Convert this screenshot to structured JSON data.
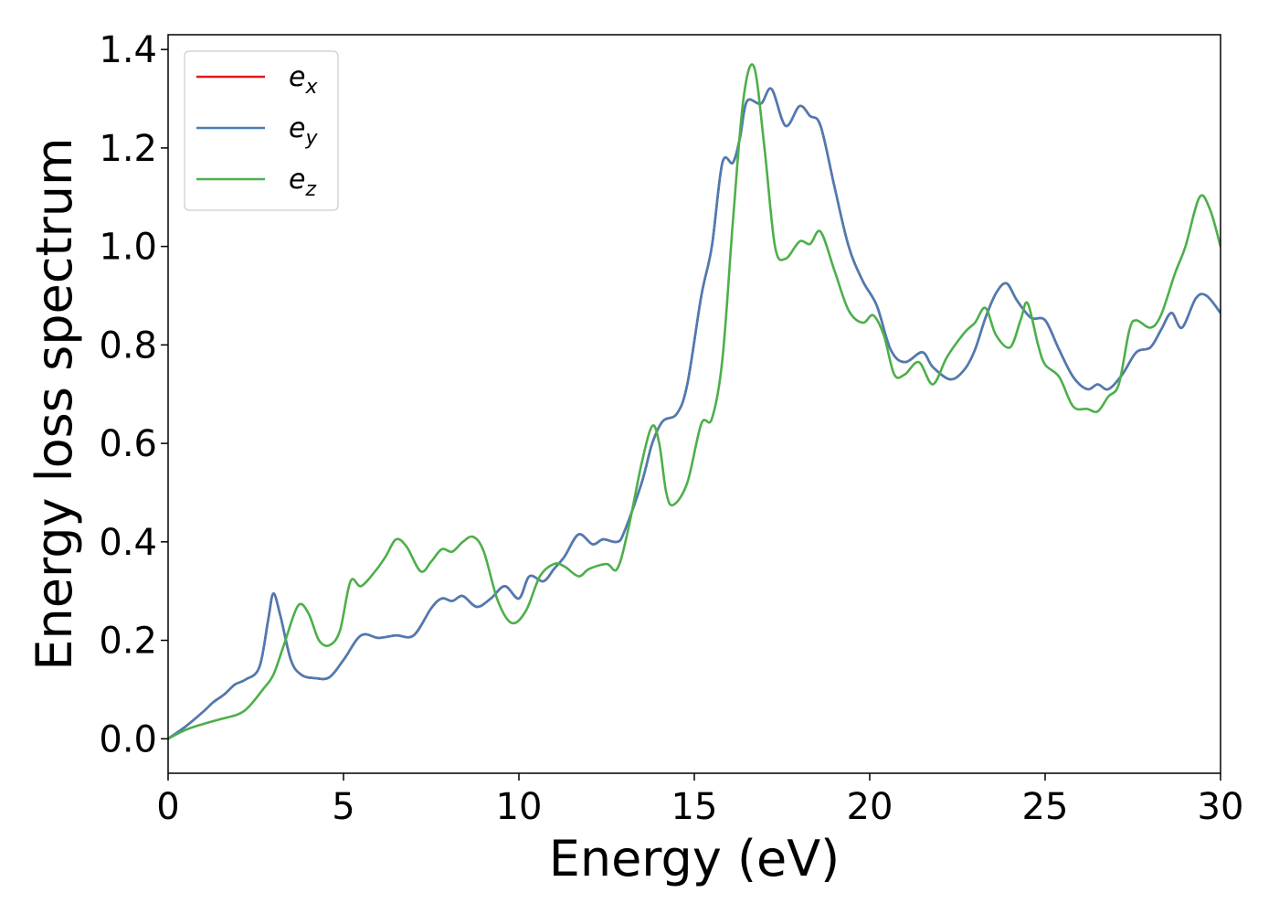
{
  "chart_data": {
    "type": "line",
    "xlabel": "Energy (eV)",
    "ylabel": "Energy loss spectrum",
    "xlim": [
      0,
      30
    ],
    "ylim": [
      -0.07,
      1.43
    ],
    "xticks": [
      0,
      5,
      10,
      15,
      20,
      25,
      30
    ],
    "yticks": [
      0.0,
      0.2,
      0.4,
      0.6,
      0.8,
      1.0,
      1.2,
      1.4
    ],
    "xtick_labels": [
      "0",
      "5",
      "10",
      "15",
      "20",
      "25",
      "30"
    ],
    "ytick_labels": [
      "0.0",
      "0.2",
      "0.4",
      "0.6",
      "0.8",
      "1.0",
      "1.2",
      "1.4"
    ],
    "grid": false,
    "legend_position": "top-left",
    "series": [
      {
        "name": "e",
        "subscript": "x",
        "color": "#e41a1c",
        "points": [
          [
            0,
            0.0
          ],
          [
            0.5,
            0.025
          ],
          [
            1.0,
            0.055
          ],
          [
            1.3,
            0.075
          ],
          [
            1.6,
            0.09
          ],
          [
            1.9,
            0.11
          ],
          [
            2.2,
            0.12
          ],
          [
            2.6,
            0.145
          ],
          [
            2.85,
            0.24
          ],
          [
            3.0,
            0.295
          ],
          [
            3.2,
            0.25
          ],
          [
            3.5,
            0.16
          ],
          [
            3.8,
            0.13
          ],
          [
            4.2,
            0.123
          ],
          [
            4.6,
            0.125
          ],
          [
            5.0,
            0.16
          ],
          [
            5.5,
            0.21
          ],
          [
            6.0,
            0.205
          ],
          [
            6.5,
            0.21
          ],
          [
            7.0,
            0.21
          ],
          [
            7.5,
            0.265
          ],
          [
            7.8,
            0.285
          ],
          [
            8.1,
            0.28
          ],
          [
            8.4,
            0.29
          ],
          [
            8.8,
            0.268
          ],
          [
            9.2,
            0.285
          ],
          [
            9.6,
            0.31
          ],
          [
            10.0,
            0.285
          ],
          [
            10.3,
            0.33
          ],
          [
            10.7,
            0.32
          ],
          [
            11.0,
            0.345
          ],
          [
            11.3,
            0.37
          ],
          [
            11.7,
            0.415
          ],
          [
            12.1,
            0.395
          ],
          [
            12.4,
            0.405
          ],
          [
            12.8,
            0.4
          ],
          [
            13.0,
            0.42
          ],
          [
            13.5,
            0.52
          ],
          [
            13.8,
            0.6
          ],
          [
            14.1,
            0.645
          ],
          [
            14.5,
            0.66
          ],
          [
            14.8,
            0.72
          ],
          [
            15.2,
            0.9
          ],
          [
            15.5,
            1.0
          ],
          [
            15.8,
            1.17
          ],
          [
            16.1,
            1.17
          ],
          [
            16.3,
            1.22
          ],
          [
            16.5,
            1.295
          ],
          [
            16.9,
            1.29
          ],
          [
            17.2,
            1.32
          ],
          [
            17.6,
            1.245
          ],
          [
            18.0,
            1.285
          ],
          [
            18.3,
            1.265
          ],
          [
            18.6,
            1.245
          ],
          [
            19.0,
            1.12
          ],
          [
            19.4,
            1.0
          ],
          [
            19.8,
            0.93
          ],
          [
            20.2,
            0.88
          ],
          [
            20.6,
            0.79
          ],
          [
            21.0,
            0.765
          ],
          [
            21.5,
            0.785
          ],
          [
            21.8,
            0.755
          ],
          [
            22.3,
            0.73
          ],
          [
            22.7,
            0.75
          ],
          [
            23.0,
            0.79
          ],
          [
            23.3,
            0.855
          ],
          [
            23.6,
            0.905
          ],
          [
            23.9,
            0.925
          ],
          [
            24.2,
            0.89
          ],
          [
            24.6,
            0.855
          ],
          [
            25.0,
            0.85
          ],
          [
            25.4,
            0.79
          ],
          [
            25.8,
            0.735
          ],
          [
            26.2,
            0.71
          ],
          [
            26.5,
            0.72
          ],
          [
            26.8,
            0.71
          ],
          [
            27.2,
            0.74
          ],
          [
            27.6,
            0.785
          ],
          [
            28.0,
            0.795
          ],
          [
            28.3,
            0.83
          ],
          [
            28.6,
            0.865
          ],
          [
            28.9,
            0.835
          ],
          [
            29.3,
            0.895
          ],
          [
            29.6,
            0.9
          ],
          [
            30.0,
            0.865
          ]
        ]
      },
      {
        "name": "e",
        "subscript": "y",
        "color": "#4a7db4",
        "points": [
          [
            0,
            0.0
          ],
          [
            0.5,
            0.025
          ],
          [
            1.0,
            0.055
          ],
          [
            1.3,
            0.075
          ],
          [
            1.6,
            0.09
          ],
          [
            1.9,
            0.11
          ],
          [
            2.2,
            0.12
          ],
          [
            2.6,
            0.145
          ],
          [
            2.85,
            0.24
          ],
          [
            3.0,
            0.295
          ],
          [
            3.2,
            0.25
          ],
          [
            3.5,
            0.16
          ],
          [
            3.8,
            0.13
          ],
          [
            4.2,
            0.123
          ],
          [
            4.6,
            0.125
          ],
          [
            5.0,
            0.16
          ],
          [
            5.5,
            0.21
          ],
          [
            6.0,
            0.205
          ],
          [
            6.5,
            0.21
          ],
          [
            7.0,
            0.21
          ],
          [
            7.5,
            0.265
          ],
          [
            7.8,
            0.285
          ],
          [
            8.1,
            0.28
          ],
          [
            8.4,
            0.29
          ],
          [
            8.8,
            0.268
          ],
          [
            9.2,
            0.285
          ],
          [
            9.6,
            0.31
          ],
          [
            10.0,
            0.285
          ],
          [
            10.3,
            0.33
          ],
          [
            10.7,
            0.32
          ],
          [
            11.0,
            0.345
          ],
          [
            11.3,
            0.37
          ],
          [
            11.7,
            0.415
          ],
          [
            12.1,
            0.395
          ],
          [
            12.4,
            0.405
          ],
          [
            12.8,
            0.4
          ],
          [
            13.0,
            0.42
          ],
          [
            13.5,
            0.52
          ],
          [
            13.8,
            0.6
          ],
          [
            14.1,
            0.645
          ],
          [
            14.5,
            0.66
          ],
          [
            14.8,
            0.72
          ],
          [
            15.2,
            0.9
          ],
          [
            15.5,
            1.0
          ],
          [
            15.8,
            1.17
          ],
          [
            16.1,
            1.17
          ],
          [
            16.3,
            1.22
          ],
          [
            16.5,
            1.295
          ],
          [
            16.9,
            1.29
          ],
          [
            17.2,
            1.32
          ],
          [
            17.6,
            1.245
          ],
          [
            18.0,
            1.285
          ],
          [
            18.3,
            1.265
          ],
          [
            18.6,
            1.245
          ],
          [
            19.0,
            1.12
          ],
          [
            19.4,
            1.0
          ],
          [
            19.8,
            0.93
          ],
          [
            20.2,
            0.88
          ],
          [
            20.6,
            0.79
          ],
          [
            21.0,
            0.765
          ],
          [
            21.5,
            0.785
          ],
          [
            21.8,
            0.755
          ],
          [
            22.3,
            0.73
          ],
          [
            22.7,
            0.75
          ],
          [
            23.0,
            0.79
          ],
          [
            23.3,
            0.855
          ],
          [
            23.6,
            0.905
          ],
          [
            23.9,
            0.925
          ],
          [
            24.2,
            0.89
          ],
          [
            24.6,
            0.855
          ],
          [
            25.0,
            0.85
          ],
          [
            25.4,
            0.79
          ],
          [
            25.8,
            0.735
          ],
          [
            26.2,
            0.71
          ],
          [
            26.5,
            0.72
          ],
          [
            26.8,
            0.71
          ],
          [
            27.2,
            0.74
          ],
          [
            27.6,
            0.785
          ],
          [
            28.0,
            0.795
          ],
          [
            28.3,
            0.83
          ],
          [
            28.6,
            0.865
          ],
          [
            28.9,
            0.835
          ],
          [
            29.3,
            0.895
          ],
          [
            29.6,
            0.9
          ],
          [
            30.0,
            0.865
          ]
        ]
      },
      {
        "name": "e",
        "subscript": "z",
        "color": "#4daf4a",
        "points": [
          [
            0,
            0.0
          ],
          [
            0.5,
            0.018
          ],
          [
            1.0,
            0.03
          ],
          [
            1.5,
            0.04
          ],
          [
            2.0,
            0.05
          ],
          [
            2.3,
            0.065
          ],
          [
            2.7,
            0.1
          ],
          [
            3.0,
            0.13
          ],
          [
            3.3,
            0.19
          ],
          [
            3.7,
            0.27
          ],
          [
            4.0,
            0.255
          ],
          [
            4.3,
            0.2
          ],
          [
            4.6,
            0.19
          ],
          [
            4.9,
            0.22
          ],
          [
            5.2,
            0.32
          ],
          [
            5.5,
            0.31
          ],
          [
            5.9,
            0.34
          ],
          [
            6.2,
            0.37
          ],
          [
            6.5,
            0.405
          ],
          [
            6.8,
            0.39
          ],
          [
            7.2,
            0.34
          ],
          [
            7.5,
            0.36
          ],
          [
            7.8,
            0.385
          ],
          [
            8.1,
            0.38
          ],
          [
            8.4,
            0.4
          ],
          [
            8.7,
            0.41
          ],
          [
            9.0,
            0.38
          ],
          [
            9.4,
            0.28
          ],
          [
            9.8,
            0.235
          ],
          [
            10.2,
            0.26
          ],
          [
            10.6,
            0.33
          ],
          [
            11.0,
            0.355
          ],
          [
            11.3,
            0.35
          ],
          [
            11.7,
            0.33
          ],
          [
            12.0,
            0.345
          ],
          [
            12.5,
            0.355
          ],
          [
            12.8,
            0.345
          ],
          [
            13.1,
            0.42
          ],
          [
            13.5,
            0.56
          ],
          [
            13.8,
            0.635
          ],
          [
            14.0,
            0.6
          ],
          [
            14.2,
            0.5
          ],
          [
            14.4,
            0.475
          ],
          [
            14.8,
            0.52
          ],
          [
            15.2,
            0.64
          ],
          [
            15.5,
            0.65
          ],
          [
            15.8,
            0.77
          ],
          [
            16.1,
            1.05
          ],
          [
            16.4,
            1.3
          ],
          [
            16.7,
            1.365
          ],
          [
            17.0,
            1.2
          ],
          [
            17.3,
            1.0
          ],
          [
            17.6,
            0.975
          ],
          [
            18.0,
            1.01
          ],
          [
            18.3,
            1.005
          ],
          [
            18.6,
            1.03
          ],
          [
            19.0,
            0.95
          ],
          [
            19.4,
            0.87
          ],
          [
            19.8,
            0.845
          ],
          [
            20.1,
            0.86
          ],
          [
            20.4,
            0.82
          ],
          [
            20.7,
            0.74
          ],
          [
            21.0,
            0.74
          ],
          [
            21.4,
            0.765
          ],
          [
            21.8,
            0.72
          ],
          [
            22.2,
            0.775
          ],
          [
            22.7,
            0.825
          ],
          [
            23.0,
            0.845
          ],
          [
            23.3,
            0.875
          ],
          [
            23.6,
            0.82
          ],
          [
            24.0,
            0.795
          ],
          [
            24.3,
            0.85
          ],
          [
            24.5,
            0.885
          ],
          [
            24.8,
            0.8
          ],
          [
            25.0,
            0.76
          ],
          [
            25.4,
            0.735
          ],
          [
            25.8,
            0.675
          ],
          [
            26.2,
            0.67
          ],
          [
            26.5,
            0.665
          ],
          [
            26.8,
            0.695
          ],
          [
            27.1,
            0.72
          ],
          [
            27.4,
            0.83
          ],
          [
            27.6,
            0.85
          ],
          [
            28.0,
            0.835
          ],
          [
            28.3,
            0.86
          ],
          [
            28.7,
            0.945
          ],
          [
            29.0,
            1.0
          ],
          [
            29.4,
            1.1
          ],
          [
            29.7,
            1.075
          ],
          [
            30.0,
            1.0
          ]
        ]
      }
    ]
  }
}
